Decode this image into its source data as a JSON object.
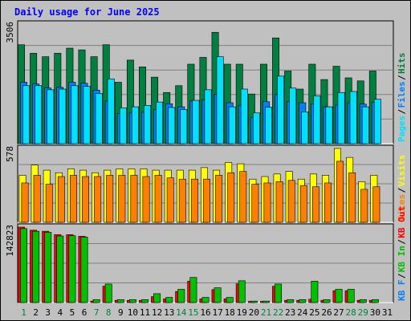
{
  "title": "Daily usage for June 2025",
  "colors": {
    "hits": "#008040",
    "files": "#0080ff",
    "pages": "#00e0ff",
    "visits": "#ffff00",
    "sites": "#ff8000",
    "kb_out": "#0080ff",
    "kb_in": "#00c000",
    "kb_f": "#ff0000",
    "title": "#0000ff",
    "weekend": "#008040",
    "weekday": "#000000"
  },
  "chart_data": [
    {
      "type": "bar",
      "panel": "hits-files-pages",
      "ymax_label": "3506",
      "ylim": [
        0,
        3506
      ],
      "legend": [
        "Hits",
        "Files",
        "Pages"
      ],
      "x": [
        1,
        2,
        3,
        4,
        5,
        6,
        7,
        8,
        9,
        10,
        11,
        12,
        13,
        14,
        15,
        16,
        17,
        18,
        19,
        20,
        21,
        22,
        23,
        24,
        25,
        26,
        27,
        28,
        29,
        30,
        31
      ],
      "series": [
        {
          "name": "Hits",
          "values": [
            2900,
            2650,
            2550,
            2650,
            2800,
            2750,
            2550,
            2900,
            1800,
            2450,
            2250,
            1950,
            1500,
            1700,
            2330,
            2530,
            3265,
            2330,
            2330,
            1455,
            2330,
            3100,
            2130,
            1600,
            2330,
            1880,
            2270,
            1930,
            1840,
            2130,
            0
          ]
        },
        {
          "name": "Files",
          "values": [
            1800,
            1750,
            1630,
            1650,
            1800,
            1770,
            1570,
            1250,
            880,
            910,
            920,
            1000,
            1170,
            1080,
            1250,
            1280,
            1450,
            1200,
            1120,
            770,
            1230,
            1440,
            1240,
            1200,
            1170,
            1080,
            1130,
            1200,
            1160,
            1210,
            0
          ]
        },
        {
          "name": "Pages",
          "values": [
            1700,
            1700,
            1580,
            1600,
            1700,
            1680,
            1470,
            1900,
            1050,
            1080,
            1120,
            1220,
            1060,
            1000,
            1270,
            1580,
            2550,
            1080,
            1600,
            900,
            1070,
            1980,
            1630,
            930,
            1400,
            1080,
            1500,
            1530,
            1080,
            1300,
            0
          ]
        }
      ]
    },
    {
      "type": "bar",
      "panel": "visits-sites",
      "ymax_label": "578",
      "ylim": [
        0,
        578
      ],
      "legend": [
        "Visits",
        "Sites"
      ],
      "x": [
        1,
        2,
        3,
        4,
        5,
        6,
        7,
        8,
        9,
        10,
        11,
        12,
        13,
        14,
        15,
        16,
        17,
        18,
        19,
        20,
        21,
        22,
        23,
        24,
        25,
        26,
        27,
        28,
        29,
        30,
        31
      ],
      "series": [
        {
          "name": "Visits",
          "values": [
            368,
            448,
            408,
            388,
            418,
            408,
            388,
            408,
            418,
            418,
            418,
            408,
            408,
            408,
            408,
            428,
            408,
            468,
            458,
            338,
            358,
            378,
            398,
            338,
            378,
            368,
            578,
            508,
            318,
            368,
            0
          ]
        },
        {
          "name": "Sites",
          "values": [
            308,
            368,
            298,
            358,
            368,
            358,
            358,
            368,
            368,
            368,
            358,
            368,
            348,
            338,
            338,
            338,
            368,
            388,
            398,
            298,
            308,
            318,
            328,
            288,
            278,
            308,
            478,
            388,
            258,
            278,
            0
          ]
        }
      ]
    },
    {
      "type": "bar",
      "panel": "kbf-kbin-kbout",
      "ymax_label": "142823",
      "ylim": [
        0,
        142823
      ],
      "legend": [
        "KB F",
        "KB In",
        "KB Out"
      ],
      "x": [
        1,
        2,
        3,
        4,
        5,
        6,
        7,
        8,
        9,
        10,
        11,
        12,
        13,
        14,
        15,
        16,
        17,
        18,
        19,
        20,
        21,
        22,
        23,
        24,
        25,
        26,
        27,
        28,
        29,
        30,
        31
      ],
      "series": [
        {
          "name": "KB F",
          "values": [
            142823,
            137000,
            135000,
            128500,
            128500,
            125500,
            2800,
            31000,
            4200,
            4200,
            4200,
            11200,
            7000,
            21000,
            40500,
            7000,
            24500,
            7000,
            35500,
            2200,
            2200,
            30800,
            4200,
            4200,
            6300,
            4200,
            22400,
            22400,
            4200,
            4200,
            0
          ]
        },
        {
          "name": "KB In",
          "values": [
            140000,
            135000,
            133000,
            126000,
            126500,
            124000,
            5600,
            35000,
            5600,
            5600,
            5600,
            16800,
            9800,
            25200,
            47600,
            9800,
            28000,
            9800,
            41300,
            2800,
            2800,
            35000,
            5600,
            5600,
            40500,
            5600,
            25200,
            25200,
            5600,
            5600,
            0
          ]
        },
        {
          "name": "KB Out",
          "values": [
            0,
            0,
            0,
            0,
            0,
            0,
            0,
            0,
            0,
            0,
            0,
            0,
            0,
            0,
            0,
            0,
            0,
            0,
            0,
            0,
            0,
            0,
            0,
            0,
            0,
            0,
            0,
            0,
            0,
            0,
            0
          ]
        }
      ]
    }
  ]
}
